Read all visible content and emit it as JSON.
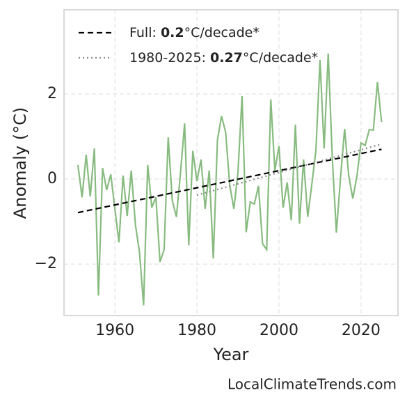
{
  "chart_data": {
    "type": "line",
    "x_label": "Year",
    "y_label": "Anomaly (°C)",
    "footer": "LocalClimateTrends.com",
    "x": [
      1951,
      1952,
      1953,
      1954,
      1955,
      1956,
      1957,
      1958,
      1959,
      1960,
      1961,
      1962,
      1963,
      1964,
      1965,
      1966,
      1967,
      1968,
      1969,
      1970,
      1971,
      1972,
      1973,
      1974,
      1975,
      1976,
      1977,
      1978,
      1979,
      1980,
      1981,
      1982,
      1983,
      1984,
      1985,
      1986,
      1987,
      1988,
      1989,
      1990,
      1991,
      1992,
      1993,
      1994,
      1995,
      1996,
      1997,
      1998,
      1999,
      2000,
      2001,
      2002,
      2003,
      2004,
      2005,
      2006,
      2007,
      2008,
      2009,
      2010,
      2011,
      2012,
      2013,
      2014,
      2015,
      2016,
      2017,
      2018,
      2019,
      2020,
      2021,
      2022,
      2023,
      2024,
      2025
    ],
    "series": [
      {
        "color": "#88bb80",
        "style": "solid",
        "values": [
          0.33,
          -0.43,
          0.57,
          -0.41,
          0.72,
          -2.74,
          0.26,
          -0.26,
          0.11,
          -0.7,
          -1.49,
          0.08,
          -0.87,
          0.2,
          -1.07,
          -1.72,
          -2.97,
          0.33,
          -0.67,
          -0.43,
          -1.95,
          -1.66,
          0.98,
          -0.51,
          -0.89,
          0.15,
          1.31,
          -1.56,
          0.66,
          -0.05,
          0.46,
          -0.7,
          0.2,
          -1.87,
          0.92,
          1.48,
          1.1,
          -0.15,
          -0.7,
          0.15,
          1.95,
          -1.25,
          -0.54,
          -0.59,
          -0.16,
          -1.52,
          -1.66,
          1.87,
          0.2,
          0.77,
          -0.67,
          -0.08,
          -0.97,
          1.28,
          -1.05,
          0.46,
          -0.89,
          -0.13,
          0.67,
          2.8,
          0.72,
          2.95,
          0.48,
          -1.26,
          0.03,
          1.18,
          0.08,
          -0.46,
          0.07,
          0.85,
          0.79,
          1.16,
          1.15,
          2.28,
          1.34
        ]
      },
      {
        "label": [
          "Full: ",
          "0.2",
          "°C/decade*"
        ],
        "color": "#000000",
        "style": "dashed",
        "x": [
          1951,
          2025
        ],
        "values": [
          -0.79,
          0.7
        ]
      },
      {
        "label": [
          "1980-2025: ",
          "0.27",
          "°C/decade*"
        ],
        "color": "#888888",
        "style": "dotted",
        "x": [
          1980,
          2025
        ],
        "values": [
          -0.38,
          0.82
        ]
      }
    ],
    "xlim": [
      1947.6,
      2029
    ],
    "ylim": [
      -3.21,
      3.98
    ],
    "xticks": [
      1960,
      1980,
      2000,
      2020
    ],
    "yticks": [
      {
        "value": -2,
        "label": "−2"
      },
      0,
      2
    ],
    "grid": true,
    "legend": "upper left"
  }
}
